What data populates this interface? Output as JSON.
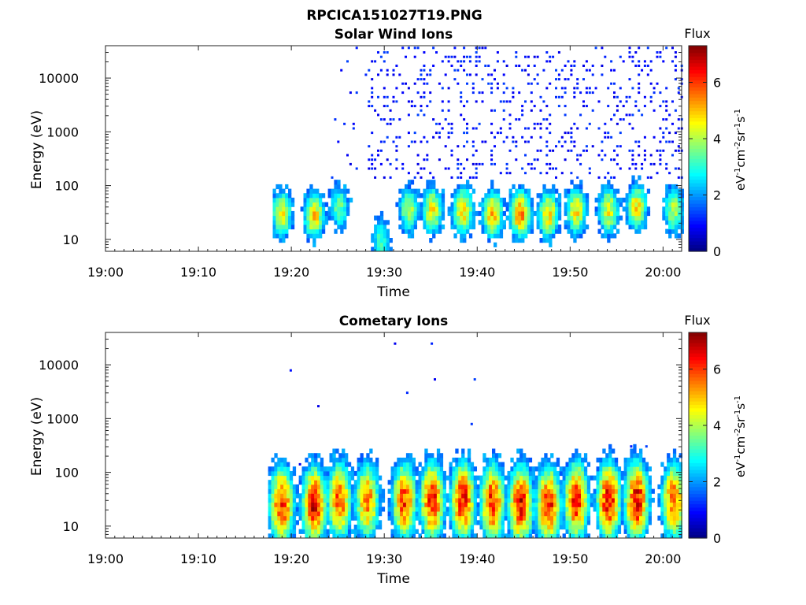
{
  "figure": {
    "title": "RPCICA151027T19.PNG"
  },
  "chart_data": [
    {
      "type": "heatmap",
      "title": "Solar Wind Ions",
      "xlabel": "Time",
      "ylabel": "Energy (eV)",
      "xticks": [
        "19:00",
        "19:10",
        "19:20",
        "19:30",
        "19:40",
        "19:50",
        "20:00"
      ],
      "xlim": [
        "19:00",
        "20:02"
      ],
      "yscale": "log",
      "yticks": [
        10,
        100,
        1000,
        10000
      ],
      "ylim": [
        6,
        40000
      ],
      "colorbar": {
        "title": "Flux",
        "label": "eV-1cm-2sr-1s-1",
        "ticks": [
          0,
          2,
          4,
          6
        ],
        "range": [
          0,
          7.3
        ],
        "colormap": "jet"
      },
      "activity_start": "19:18",
      "bursts": [
        {
          "time": "19:18.8",
          "peak_energy_eV": 30,
          "intensity": 4.5
        },
        {
          "time": "19:22.3",
          "peak_energy_eV": 28,
          "intensity": 4.8
        },
        {
          "time": "19:25.0",
          "peak_energy_eV": 40,
          "intensity": 3.5
        },
        {
          "time": "19:29.5",
          "peak_energy_eV": 10,
          "intensity": 3.2
        },
        {
          "time": "19:32.5",
          "peak_energy_eV": 35,
          "intensity": 4.0
        },
        {
          "time": "19:35.0",
          "peak_energy_eV": 35,
          "intensity": 4.6
        },
        {
          "time": "19:38.3",
          "peak_energy_eV": 35,
          "intensity": 4.8
        },
        {
          "time": "19:41.5",
          "peak_energy_eV": 30,
          "intensity": 5.0
        },
        {
          "time": "19:44.5",
          "peak_energy_eV": 30,
          "intensity": 5.4
        },
        {
          "time": "19:47.5",
          "peak_energy_eV": 30,
          "intensity": 4.8
        },
        {
          "time": "19:50.5",
          "peak_energy_eV": 35,
          "intensity": 4.6
        },
        {
          "time": "19:54.0",
          "peak_energy_eV": 35,
          "intensity": 4.5
        },
        {
          "time": "19:57.0",
          "peak_energy_eV": 40,
          "intensity": 4.6
        },
        {
          "time": "20:01.0",
          "peak_energy_eV": 35,
          "intensity": 4.0
        }
      ]
    },
    {
      "type": "heatmap",
      "title": "Cometary Ions",
      "xlabel": "Time",
      "ylabel": "Energy (eV)",
      "xticks": [
        "19:00",
        "19:10",
        "19:20",
        "19:30",
        "19:40",
        "19:50",
        "20:00"
      ],
      "xlim": [
        "19:00",
        "20:02"
      ],
      "yscale": "log",
      "yticks": [
        10,
        100,
        1000,
        10000
      ],
      "ylim": [
        6,
        40000
      ],
      "colorbar": {
        "title": "Flux",
        "label": "eV-1cm-2sr-1s-1",
        "ticks": [
          0,
          2,
          4,
          6
        ],
        "range": [
          0,
          7.3
        ],
        "colormap": "jet"
      },
      "activity_start": "19:17.5",
      "bursts": [
        {
          "time": "19:18.8",
          "peak_energy_eV": 25,
          "intensity": 6.2
        },
        {
          "time": "19:22.3",
          "peak_energy_eV": 25,
          "intensity": 6.5
        },
        {
          "time": "19:25.0",
          "peak_energy_eV": 30,
          "intensity": 5.8
        },
        {
          "time": "19:28.0",
          "peak_energy_eV": 30,
          "intensity": 5.5
        },
        {
          "time": "19:32.0",
          "peak_energy_eV": 30,
          "intensity": 6.0
        },
        {
          "time": "19:35.0",
          "peak_energy_eV": 30,
          "intensity": 6.3
        },
        {
          "time": "19:38.3",
          "peak_energy_eV": 30,
          "intensity": 6.4
        },
        {
          "time": "19:41.5",
          "peak_energy_eV": 28,
          "intensity": 6.3
        },
        {
          "time": "19:44.5",
          "peak_energy_eV": 25,
          "intensity": 6.6
        },
        {
          "time": "19:47.5",
          "peak_energy_eV": 25,
          "intensity": 6.4
        },
        {
          "time": "19:50.5",
          "peak_energy_eV": 30,
          "intensity": 6.3
        },
        {
          "time": "19:54.0",
          "peak_energy_eV": 30,
          "intensity": 6.5
        },
        {
          "time": "19:57.0",
          "peak_energy_eV": 30,
          "intensity": 6.6
        },
        {
          "time": "20:01.0",
          "peak_energy_eV": 30,
          "intensity": 5.8
        }
      ]
    }
  ]
}
